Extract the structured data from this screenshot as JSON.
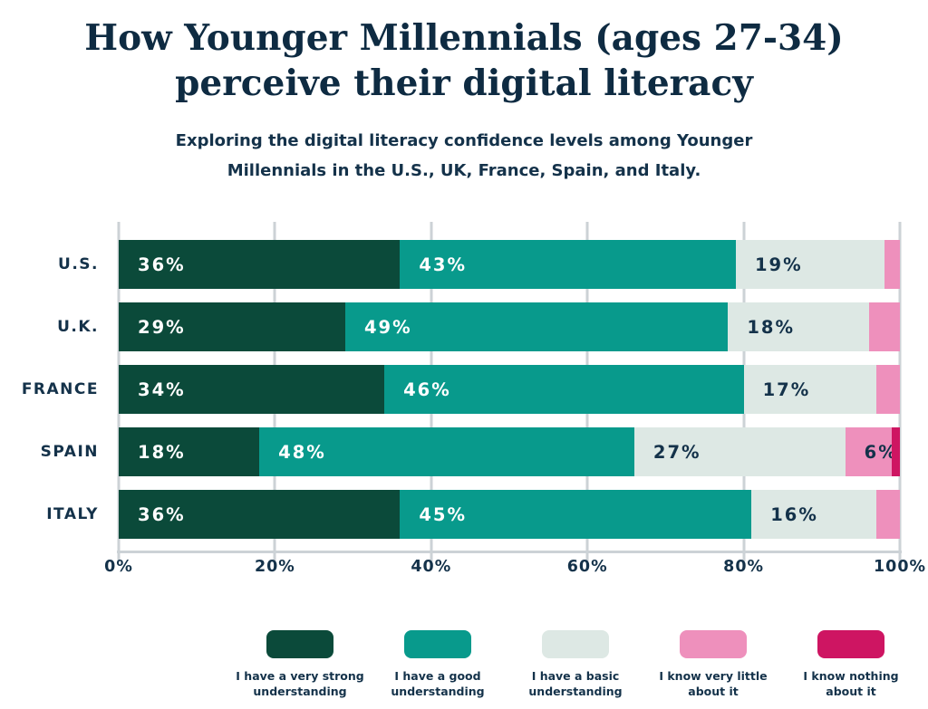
{
  "title": {
    "line1": "How Younger Millennials (ages 27-34)",
    "line2": "perceive their digital literacy"
  },
  "subtitle": {
    "line1": "Exploring the digital literacy confidence levels among Younger",
    "line2": "Millennials in the U.S., UK, France, Spain, and Italy."
  },
  "colors": {
    "navy_text": "#14324a",
    "title_navy": "#0e2b42",
    "gridline": "#ccd2d6",
    "background": "#ffffff"
  },
  "chart_data": {
    "type": "bar",
    "orientation": "horizontal",
    "stacked": true,
    "title": "How Younger Millennials (ages 27-34) perceive their digital literacy",
    "categories": [
      "U.S.",
      "U.K.",
      "FRANCE",
      "SPAIN",
      "ITALY"
    ],
    "series": [
      {
        "name": "I have a very strong understanding",
        "legend_lines": [
          "I have a very strong",
          "understanding"
        ],
        "color": "#0b4a3a",
        "label_color": "#ffffff",
        "values": [
          36,
          29,
          34,
          18,
          36
        ]
      },
      {
        "name": "I have a good understanding",
        "legend_lines": [
          "I have a good",
          "understanding"
        ],
        "color": "#089a8c",
        "label_color": "#ffffff",
        "values": [
          43,
          49,
          46,
          48,
          45
        ]
      },
      {
        "name": "I have a basic understanding",
        "legend_lines": [
          "I have a basic",
          "understanding"
        ],
        "color": "#dde8e4",
        "label_color": "#14324a",
        "values": [
          19,
          18,
          17,
          27,
          16
        ]
      },
      {
        "name": "I know very little about it",
        "legend_lines": [
          "I know very little",
          "about it"
        ],
        "color": "#ee90bc",
        "label_color": "#14324a",
        "values": [
          2,
          4,
          3,
          6,
          3
        ]
      },
      {
        "name": "I know nothing about it",
        "legend_lines": [
          "I know nothing",
          "about it"
        ],
        "color": "#ce1562",
        "label_color": "#14324a",
        "values": [
          0,
          0,
          0,
          1,
          0
        ]
      }
    ],
    "value_suffix": "%",
    "label_min_value": 6,
    "x_ticks": [
      {
        "label": "0%",
        "value": 0
      },
      {
        "label": "20%",
        "value": 20
      },
      {
        "label": "40%",
        "value": 40
      },
      {
        "label": "60%",
        "value": 60
      },
      {
        "label": "80%",
        "value": 80
      },
      {
        "label": "100%",
        "value": 100
      }
    ],
    "xlim": [
      0,
      100
    ],
    "grid": true,
    "legend_position": "bottom"
  }
}
